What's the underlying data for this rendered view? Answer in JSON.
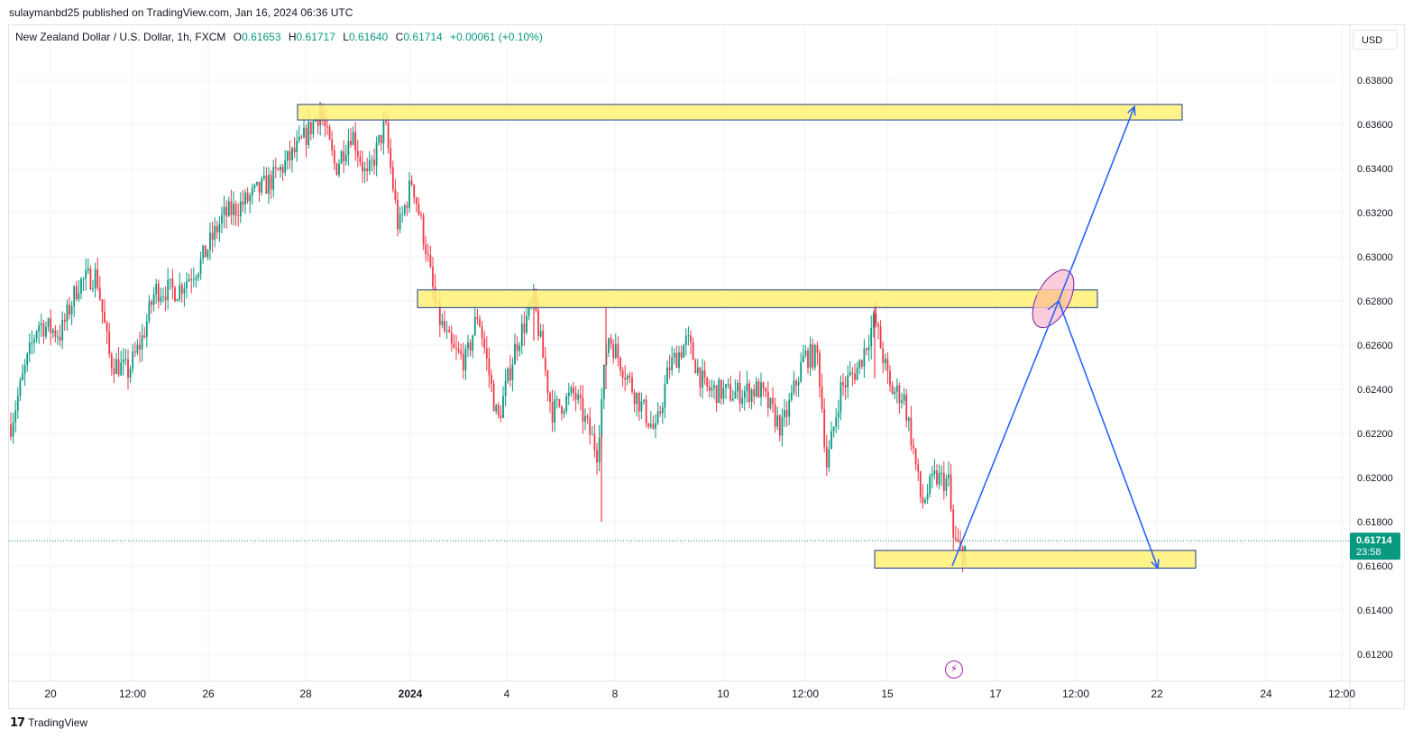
{
  "publisher_line": "sulaymanbd25 published on TradingView.com, Jan 16, 2024 06:36 UTC",
  "legend": {
    "symbol": "New Zealand Dollar / U.S. Dollar, 1h, FXCM",
    "open_label": "O",
    "open": "0.61653",
    "high_label": "H",
    "high": "0.61717",
    "low_label": "L",
    "low": "0.61640",
    "close_label": "C",
    "close": "0.61714",
    "change": "+0.00061 (+0.10%)"
  },
  "currency_button": "USD",
  "footer_brand": "TradingView",
  "colors": {
    "up": "#089981",
    "down": "#f23645",
    "zone_fill": "#fff176",
    "zone_border": "#1e3a8a",
    "projection_line": "#2962ff",
    "ellipse_fill": "#f8bbd0",
    "ellipse_stroke": "#7b1fa2",
    "current_price_label": "#089981"
  },
  "chart_data": {
    "type": "candlestick",
    "symbol": "NZDUSD",
    "interval": "1h",
    "y_axis": {
      "ticks": [
        "0.63800",
        "0.63600",
        "0.63400",
        "0.63200",
        "0.63000",
        "0.62800",
        "0.62600",
        "0.62400",
        "0.62200",
        "0.62000",
        "0.61800",
        "0.61600",
        "0.61400",
        "0.61200"
      ],
      "ylim": [
        0.6109,
        0.6396
      ]
    },
    "x_axis": {
      "ticks": [
        {
          "label": "20",
          "bold": false
        },
        {
          "label": "12:00",
          "bold": false
        },
        {
          "label": "26",
          "bold": false
        },
        {
          "label": "28",
          "bold": false
        },
        {
          "label": "2024",
          "bold": true
        },
        {
          "label": "4",
          "bold": false
        },
        {
          "label": "8",
          "bold": false
        },
        {
          "label": "10",
          "bold": false
        },
        {
          "label": "12:00",
          "bold": false
        },
        {
          "label": "15",
          "bold": false
        },
        {
          "label": "17",
          "bold": false
        },
        {
          "label": "12:00",
          "bold": false
        },
        {
          "label": "22",
          "bold": false
        },
        {
          "label": "24",
          "bold": false
        },
        {
          "label": "12:00",
          "bold": false
        }
      ]
    },
    "price_path": [
      {
        "x": 0,
        "p": 0.6224
      },
      {
        "x": 15,
        "p": 0.6248
      },
      {
        "x": 30,
        "p": 0.627
      },
      {
        "x": 55,
        "p": 0.6265
      },
      {
        "x": 75,
        "p": 0.6288
      },
      {
        "x": 95,
        "p": 0.6292
      },
      {
        "x": 110,
        "p": 0.6253
      },
      {
        "x": 130,
        "p": 0.6248
      },
      {
        "x": 145,
        "p": 0.6262
      },
      {
        "x": 160,
        "p": 0.6285
      },
      {
        "x": 185,
        "p": 0.6285
      },
      {
        "x": 210,
        "p": 0.6297
      },
      {
        "x": 235,
        "p": 0.6318
      },
      {
        "x": 260,
        "p": 0.6325
      },
      {
        "x": 290,
        "p": 0.6335
      },
      {
        "x": 320,
        "p": 0.635
      },
      {
        "x": 343,
        "p": 0.6366
      },
      {
        "x": 360,
        "p": 0.634
      },
      {
        "x": 378,
        "p": 0.6357
      },
      {
        "x": 395,
        "p": 0.6335
      },
      {
        "x": 415,
        "p": 0.636
      },
      {
        "x": 430,
        "p": 0.6312
      },
      {
        "x": 445,
        "p": 0.6335
      },
      {
        "x": 460,
        "p": 0.6305
      },
      {
        "x": 472,
        "p": 0.6275
      },
      {
        "x": 490,
        "p": 0.6257
      },
      {
        "x": 505,
        "p": 0.6253
      },
      {
        "x": 518,
        "p": 0.6275
      },
      {
        "x": 540,
        "p": 0.6225
      },
      {
        "x": 560,
        "p": 0.626
      },
      {
        "x": 580,
        "p": 0.628
      },
      {
        "x": 600,
        "p": 0.623
      },
      {
        "x": 625,
        "p": 0.6238
      },
      {
        "x": 650,
        "p": 0.6212
      },
      {
        "x": 662,
        "p": 0.6265
      },
      {
        "x": 690,
        "p": 0.624
      },
      {
        "x": 715,
        "p": 0.622
      },
      {
        "x": 730,
        "p": 0.625
      },
      {
        "x": 750,
        "p": 0.6262
      },
      {
        "x": 770,
        "p": 0.624
      },
      {
        "x": 800,
        "p": 0.6238
      },
      {
        "x": 830,
        "p": 0.624
      },
      {
        "x": 855,
        "p": 0.6222
      },
      {
        "x": 880,
        "p": 0.6255
      },
      {
        "x": 895,
        "p": 0.6255
      },
      {
        "x": 905,
        "p": 0.6205
      },
      {
        "x": 920,
        "p": 0.624
      },
      {
        "x": 940,
        "p": 0.625
      },
      {
        "x": 958,
        "p": 0.6272
      },
      {
        "x": 975,
        "p": 0.624
      },
      {
        "x": 990,
        "p": 0.6237
      },
      {
        "x": 1000,
        "p": 0.6215
      },
      {
        "x": 1010,
        "p": 0.6188
      },
      {
        "x": 1025,
        "p": 0.62
      },
      {
        "x": 1040,
        "p": 0.6198
      },
      {
        "x": 1045,
        "p": 0.6172
      },
      {
        "x": 1055,
        "p": 0.6165
      },
      {
        "x": 1060,
        "p": 0.61714
      }
    ],
    "spikes": [
      {
        "x": 343,
        "high": 0.637,
        "low": 0.636
      },
      {
        "x": 580,
        "high": 0.6286,
        "low": 0.6262
      },
      {
        "x": 655,
        "high": 0.622,
        "low": 0.618
      },
      {
        "x": 660,
        "high": 0.6277,
        "low": 0.624
      },
      {
        "x": 958,
        "high": 0.6278,
        "low": 0.6245
      }
    ],
    "last_price": "0.61714",
    "countdown": "23:58",
    "zones": [
      {
        "name": "upper-resistance-zone",
        "x_from": 330,
        "x_to": 1311,
        "top": 0.6369,
        "bottom": 0.6362
      },
      {
        "name": "middle-resistance-zone",
        "x_from": 463,
        "x_to": 1217,
        "top": 0.6285,
        "bottom": 0.6277
      },
      {
        "name": "lower-support-zone",
        "x_from": 970,
        "x_to": 1326,
        "top": 0.6167,
        "bottom": 0.6159
      }
    ],
    "projection_path_up": [
      {
        "x": 1056,
        "p": 0.616
      },
      {
        "x": 1174,
        "p": 0.628
      },
      {
        "x": 1258,
        "p": 0.6368
      }
    ],
    "projection_path_down": [
      {
        "x": 1174,
        "p": 0.628
      },
      {
        "x": 1284,
        "p": 0.6159
      }
    ]
  }
}
